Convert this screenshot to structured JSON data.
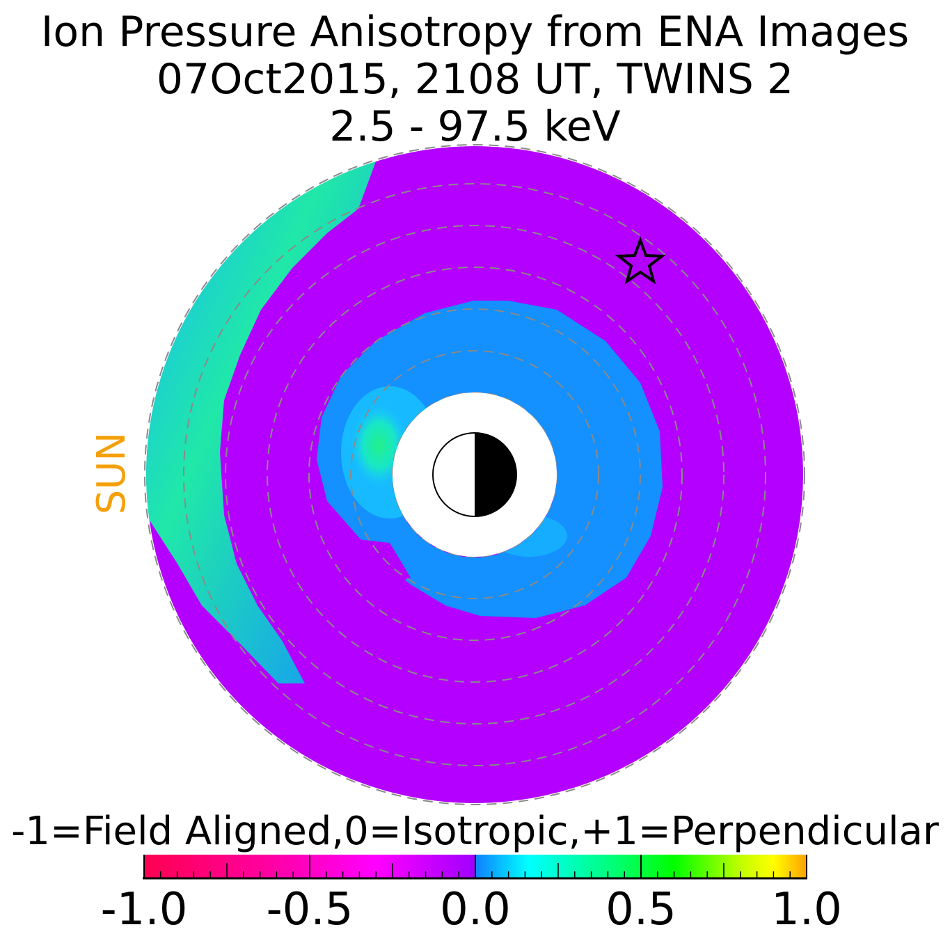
{
  "title_lines": [
    "Ion Pressure Anisotropy from  ENA Images",
    "07Oct2015, 2108 UT,  TWINS 2",
    "2.5 - 97.5 keV"
  ],
  "sun_label": "SUN",
  "colorbar": {
    "label": "-1=Field Aligned,0=Isotropic,+1=Perpendicular",
    "min": -1.0,
    "max": 1.0,
    "tick_labels": [
      "-1.0",
      "-0.5",
      "0.0",
      "0.5",
      "1.0"
    ],
    "tick_values": [
      -1.0,
      -0.5,
      0.0,
      0.5,
      1.0
    ],
    "colormap": [
      "#ff0050",
      "#ff00c0",
      "#ff00ff",
      "#c000ff",
      "#a000ff",
      "#1080ff",
      "#00ffff",
      "#00ff80",
      "#00ff00",
      "#80ff00",
      "#ffff00",
      "#ffa000"
    ]
  },
  "chart_data": {
    "type": "heatmap",
    "projection": "polar equatorial map",
    "background_value": 0.0,
    "regions": [
      {
        "name": "outer dusk band",
        "value": 0.15
      },
      {
        "name": "inner ring",
        "value": 0.12
      },
      {
        "name": "inner peak",
        "value": 0.35
      }
    ],
    "colors": {
      "isotropic": "#b400ff",
      "band": "#1490ff",
      "band_bright": "#18d6ff",
      "peak": "#22f08a",
      "earth_night": "#000000",
      "earth_day": "#ffffff",
      "grid": "#8a8a8a"
    },
    "grid": "dashed concentric circles",
    "markers": [
      {
        "symbol": "star",
        "meaning": "spacecraft position"
      }
    ]
  }
}
